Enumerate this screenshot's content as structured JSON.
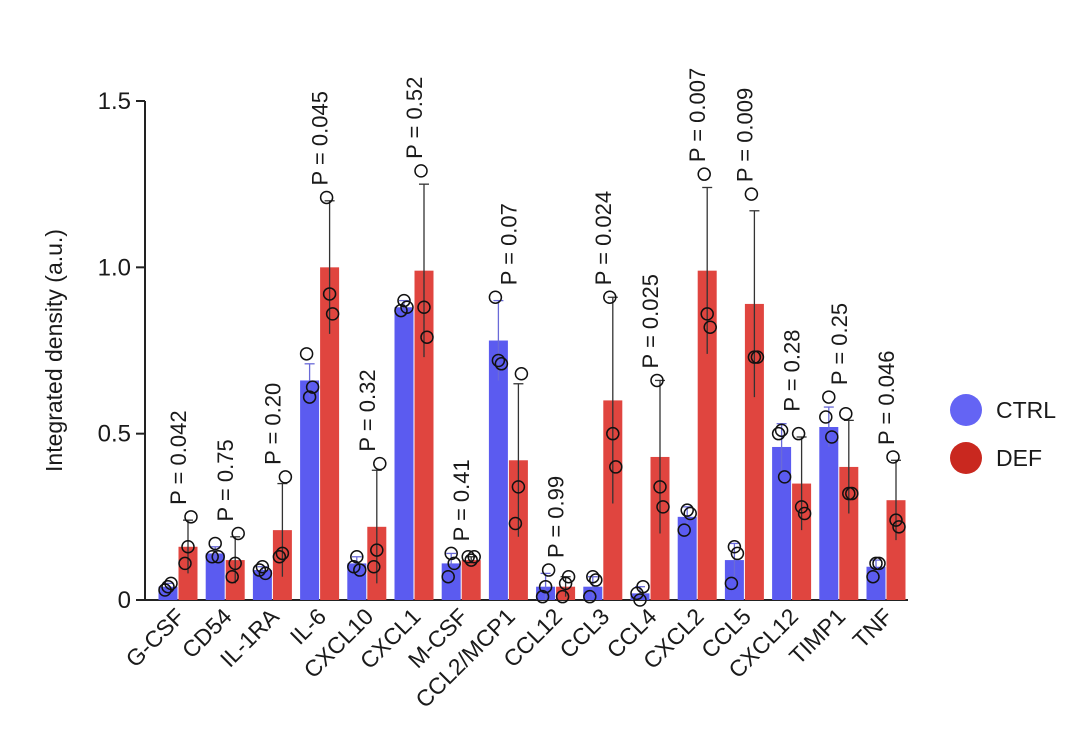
{
  "chart_data": {
    "type": "bar",
    "title": "",
    "xlabel": "",
    "ylabel": "Integrated density (a.u.)",
    "ylim": [
      0,
      1.5
    ],
    "yticks": [
      {
        "value": 0,
        "label": "0"
      },
      {
        "value": 0.5,
        "label": "0.5"
      },
      {
        "value": 1.0,
        "label": "1.0"
      },
      {
        "value": 1.5,
        "label": "1.5"
      }
    ],
    "categories": [
      "G-CSF",
      "CD54",
      "IL-1RA",
      "IL-6",
      "CXCL10",
      "CXCL1",
      "M-CSF",
      "CCL2/MCP1",
      "CCL12",
      "CCL3",
      "CCL4",
      "CXCL2",
      "CCL5",
      "CXCL12",
      "TIMP1",
      "TNF"
    ],
    "series": [
      {
        "name": "CTRL",
        "color": "#5b5bf0",
        "values": [
          0.04,
          0.14,
          0.09,
          0.66,
          0.11,
          0.88,
          0.11,
          0.78,
          0.04,
          0.04,
          0.02,
          0.25,
          0.12,
          0.46,
          0.52,
          0.1
        ],
        "errors": [
          0.01,
          0.02,
          0.01,
          0.05,
          0.02,
          0.02,
          0.03,
          0.12,
          0.04,
          0.03,
          0.02,
          0.03,
          0.05,
          0.07,
          0.06,
          0.02
        ],
        "points": [
          [
            0.03,
            0.04,
            0.05
          ],
          [
            0.13,
            0.17,
            0.13
          ],
          [
            0.09,
            0.1,
            0.08
          ],
          [
            0.74,
            0.61,
            0.64
          ],
          [
            0.1,
            0.13,
            0.09
          ],
          [
            0.87,
            0.9,
            0.88
          ],
          [
            0.07,
            0.14,
            0.11
          ],
          [
            0.91,
            0.72,
            0.71
          ],
          [
            0.01,
            0.04,
            0.09
          ],
          [
            0.01,
            0.07,
            0.06
          ],
          [
            0.02,
            0.0,
            0.04
          ],
          [
            0.21,
            0.27,
            0.26
          ],
          [
            0.05,
            0.16,
            0.14
          ],
          [
            0.5,
            0.51,
            0.37
          ],
          [
            0.55,
            0.61,
            0.49
          ],
          [
            0.07,
            0.11,
            0.11
          ]
        ]
      },
      {
        "name": "DEF",
        "color": "#e0453f",
        "values": [
          0.16,
          0.12,
          0.21,
          1.0,
          0.22,
          0.99,
          0.12,
          0.42,
          0.04,
          0.6,
          0.43,
          0.99,
          0.89,
          0.35,
          0.4,
          0.3
        ],
        "errors": [
          0.08,
          0.07,
          0.14,
          0.2,
          0.17,
          0.26,
          0.01,
          0.23,
          0.03,
          0.31,
          0.23,
          0.25,
          0.28,
          0.14,
          0.14,
          0.12
        ],
        "points": [
          [
            0.11,
            0.16,
            0.25
          ],
          [
            0.07,
            0.11,
            0.2
          ],
          [
            0.13,
            0.14,
            0.37
          ],
          [
            1.21,
            0.92,
            0.86
          ],
          [
            0.1,
            0.15,
            0.41
          ],
          [
            1.29,
            0.88,
            0.79
          ],
          [
            0.13,
            0.12,
            0.13
          ],
          [
            0.23,
            0.34,
            0.68
          ],
          [
            0.01,
            0.05,
            0.07
          ],
          [
            0.91,
            0.5,
            0.4
          ],
          [
            0.66,
            0.34,
            0.28
          ],
          [
            1.28,
            0.86,
            0.82
          ],
          [
            1.22,
            0.73,
            0.73
          ],
          [
            0.5,
            0.28,
            0.26
          ],
          [
            0.56,
            0.32,
            0.32
          ],
          [
            0.43,
            0.24,
            0.22
          ]
        ]
      }
    ],
    "pvalues": [
      "P = 0.042",
      "P = 0.75",
      "P = 0.20",
      "P = 0.045",
      "P = 0.32",
      "P = 0.52",
      "P = 0.41",
      "P = 0.07",
      "P = 0.99",
      "P = 0.024",
      "P = 0.025",
      "P = 0.007",
      "P = 0.009",
      "P = 0.28",
      "P = 0.25",
      "P = 0.046"
    ],
    "legend": {
      "position": "right",
      "items": [
        "CTRL",
        "DEF"
      ]
    }
  }
}
